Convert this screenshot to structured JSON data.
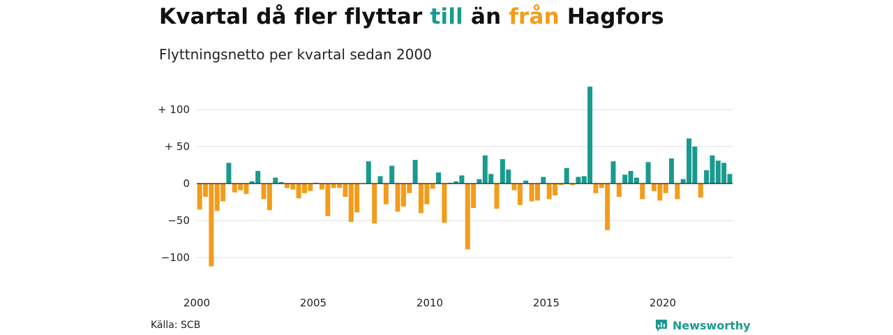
{
  "title": {
    "part1": "Kvartal då fler flyttar ",
    "till": "till",
    "part2": " än ",
    "fran": "från",
    "part3": " Hagfors"
  },
  "subtitle": "Flyttningsnetto per kvartal sedan 2000",
  "source": "Källa: SCB",
  "brand": "Newsworthy",
  "colors": {
    "positive": "#1a9a8f",
    "negative": "#f39c1a",
    "grid": "#dddddd",
    "zero": "#222222"
  },
  "chart_data": {
    "type": "bar",
    "title": "Kvartal då fler flyttar till än från Hagfors",
    "subtitle": "Flyttningsnetto per kvartal sedan 2000",
    "xlabel": "",
    "ylabel": "",
    "ylim": [
      -140,
      140
    ],
    "y_ticks": [
      {
        "value": 100,
        "label": "+ 100"
      },
      {
        "value": 50,
        "label": "+  50"
      },
      {
        "value": 0,
        "label": "0"
      },
      {
        "value": -50,
        "label": "−50"
      },
      {
        "value": -100,
        "label": "−100"
      }
    ],
    "x_ticks": [
      {
        "value": 2000,
        "label": "2000"
      },
      {
        "value": 2005,
        "label": "2005"
      },
      {
        "value": 2010,
        "label": "2010"
      },
      {
        "value": 2015,
        "label": "2015"
      },
      {
        "value": 2020,
        "label": "2020"
      }
    ],
    "start_year": 2000,
    "grid": true,
    "values": [
      -35,
      -18,
      -112,
      -37,
      -24,
      28,
      -12,
      -9,
      -14,
      3,
      17,
      -21,
      -36,
      8,
      2,
      -6,
      -8,
      -20,
      -13,
      -10,
      1,
      -8,
      -44,
      -6,
      -6,
      -18,
      -52,
      -39,
      0,
      30,
      -54,
      10,
      -28,
      24,
      -38,
      -31,
      -13,
      32,
      -40,
      -28,
      -7,
      15,
      -53,
      1,
      3,
      11,
      -89,
      -33,
      6,
      38,
      13,
      -34,
      33,
      19,
      -9,
      -29,
      4,
      -24,
      -23,
      9,
      -21,
      -16,
      -2,
      21,
      -2,
      9,
      10,
      131,
      -13,
      -6,
      -63,
      30,
      -18,
      12,
      17,
      8,
      -21,
      29,
      -10,
      -23,
      -13,
      34,
      -21,
      6,
      61,
      50,
      -19,
      18,
      38,
      31,
      28,
      13
    ]
  }
}
